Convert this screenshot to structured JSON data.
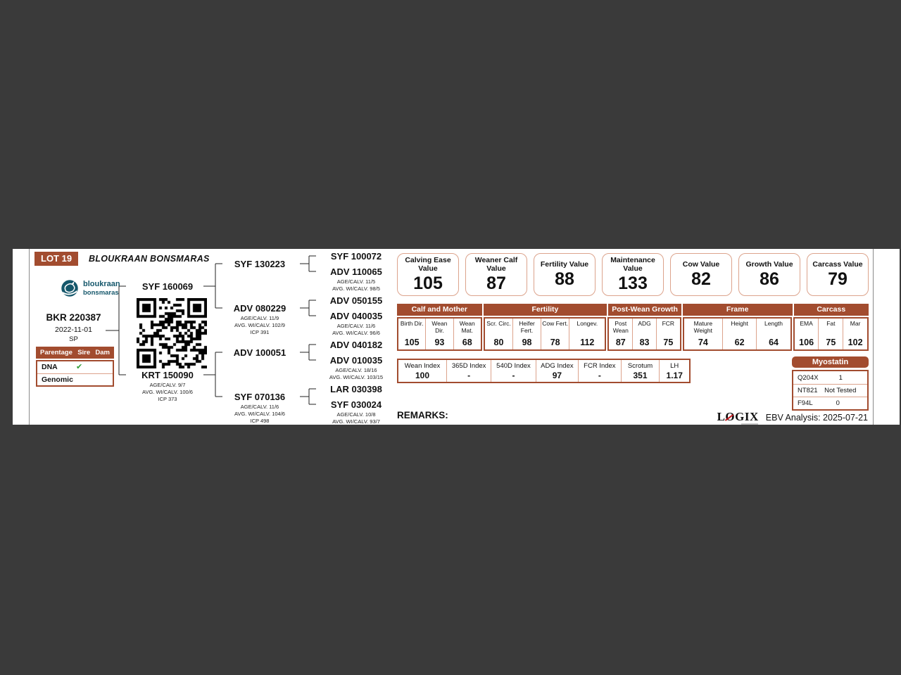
{
  "colors": {
    "page_background": "#3A3A3A",
    "card_background": "#FFFFFF",
    "brown": "#A24C2F",
    "salmon": "#DCA38C",
    "green_check": "#2E9B33",
    "teal": "#15576B",
    "logix_red": "#C4161C"
  },
  "header": {
    "lot": "LOT 19",
    "stud": "BLOUKRAAN BONSMARAS"
  },
  "logo": {
    "line1": "bloukraan",
    "line2": "bonsmaras"
  },
  "animal": {
    "id": "BKR 220387",
    "birth_date": "2022-11-01",
    "status": "SP"
  },
  "parentage": {
    "header": [
      "Parentage",
      "Sire",
      "Dam"
    ],
    "rows": [
      {
        "label": "DNA",
        "check": "✔"
      },
      {
        "label": "Genomic",
        "check": ""
      }
    ]
  },
  "pedigree": {
    "sire": {
      "id": "SYF 160069"
    },
    "dam": {
      "id": "KRT 150090",
      "details": [
        "AGE/CALV. 9/7",
        "AVG. WI/CALV. 100/6",
        "ICP 373"
      ]
    },
    "gen2": [
      {
        "id": "SYF 130223"
      },
      {
        "id": "ADV 080229",
        "details": [
          "AGE/CALV. 11/9",
          "AVG. WI/CALV. 102/9",
          "ICP 391"
        ]
      },
      {
        "id": "ADV 100051"
      },
      {
        "id": "SYF 070136",
        "details": [
          "AGE/CALV. 11/6",
          "AVG. WI/CALV. 104/6",
          "ICP 498"
        ]
      }
    ],
    "gen3": [
      {
        "id": "SYF 100072"
      },
      {
        "id": "ADV 110065",
        "details": [
          "AGE/CALV. 11/5",
          "AVG. WI/CALV. 98/5"
        ]
      },
      {
        "id": "ADV 050155"
      },
      {
        "id": "ADV 040035",
        "details": [
          "AGE/CALV. 11/6",
          "AVG. WI/CALV. 96/6"
        ]
      },
      {
        "id": "ADV 040182"
      },
      {
        "id": "ADV 010035",
        "details": [
          "AGE/CALV. 18/16",
          "AVG. WI/CALV. 103/15"
        ]
      },
      {
        "id": "LAR 030398"
      },
      {
        "id": "SYF 030024",
        "details": [
          "AGE/CALV. 10/8",
          "AVG. WI/CALV. 93/7"
        ]
      }
    ]
  },
  "value_boxes": [
    {
      "label": "Calving Ease Value",
      "value": "105"
    },
    {
      "label": "Weaner Calf Value",
      "value": "87"
    },
    {
      "label": "Fertility Value",
      "value": "88"
    },
    {
      "label": "Maintenance Value",
      "value": "133"
    },
    {
      "label": "Cow Value",
      "value": "82"
    },
    {
      "label": "Growth Value",
      "value": "86"
    },
    {
      "label": "Carcass Value",
      "value": "79"
    }
  ],
  "ebv_table": {
    "groups": [
      {
        "label": "Calf and Mother",
        "cols": [
          {
            "l": "Birth Dir.",
            "v": "105"
          },
          {
            "l": "Wean Dir.",
            "v": "93"
          },
          {
            "l": "Wean Mat.",
            "v": "68"
          }
        ]
      },
      {
        "label": "Fertility",
        "cols": [
          {
            "l": "Scr. Circ.",
            "v": "80"
          },
          {
            "l": "Heifer Fert.",
            "v": "98"
          },
          {
            "l": "Cow Fert.",
            "v": "78"
          },
          {
            "l": "Longev.",
            "v": "112"
          }
        ]
      },
      {
        "label": "Post-Wean Growth",
        "cols": [
          {
            "l": "Post Wean",
            "v": "87"
          },
          {
            "l": "ADG",
            "v": "83"
          },
          {
            "l": "FCR",
            "v": "75"
          }
        ]
      },
      {
        "label": "Frame",
        "cols": [
          {
            "l": "Mature Weight",
            "v": "74"
          },
          {
            "l": "Height",
            "v": "62"
          },
          {
            "l": "Length",
            "v": "64"
          }
        ]
      },
      {
        "label": "Carcass",
        "cols": [
          {
            "l": "EMA",
            "v": "106"
          },
          {
            "l": "Fat",
            "v": "75"
          },
          {
            "l": "Mar",
            "v": "102"
          }
        ]
      }
    ]
  },
  "index_table": [
    {
      "l": "Wean Index",
      "v": "100"
    },
    {
      "l": "365D Index",
      "v": "-"
    },
    {
      "l": "540D Index",
      "v": "-"
    },
    {
      "l": "ADG Index",
      "v": "97"
    },
    {
      "l": "FCR Index",
      "v": "-"
    },
    {
      "l": "Scrotum",
      "v": "351"
    },
    {
      "l": "LH",
      "v": "1.17"
    }
  ],
  "myostatin": {
    "title": "Myostatin",
    "rows": [
      {
        "label": "Q204X",
        "value": "1"
      },
      {
        "label": "NT821",
        "value": "Not Tested"
      },
      {
        "label": "F94L",
        "value": "0"
      }
    ]
  },
  "footer": {
    "remarks_label": "REMARKS:",
    "logix_parts": [
      "L",
      "O",
      "GIX"
    ],
    "analysis": "EBV Analysis: 2025-07-21"
  }
}
